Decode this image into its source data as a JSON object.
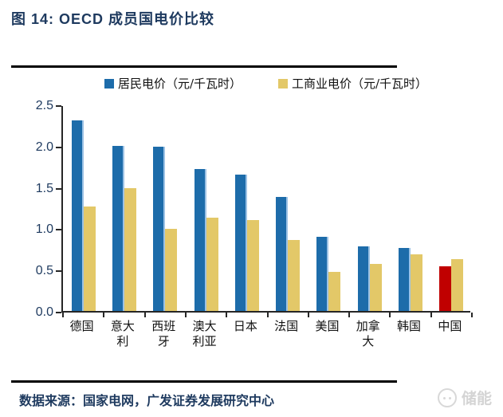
{
  "title": "图 14: OECD 成员国电价比较",
  "footer": {
    "source": "数据来源：国家电网，广发证券发展研究中心",
    "watermark": "储能"
  },
  "colors": {
    "title_navy": "#1e3a5f",
    "axis": "#262626",
    "residential_blue": "#1d6caa",
    "residential_blue_edge": "#9cc2e5",
    "industrial_gold": "#e3c868",
    "china_highlight_red": "#c00000",
    "watermark_gray": "#d4d4d4"
  },
  "chart_data": {
    "type": "bar",
    "title": "图 14: OECD 成员国电价比较",
    "categories": [
      "德国",
      "意大利",
      "西班牙",
      "澳大利亚",
      "日本",
      "法国",
      "美国",
      "加拿大",
      "韩国",
      "中国"
    ],
    "series": [
      {
        "name": "居民电价（元/千瓦时）",
        "color": "#1d6caa",
        "values": [
          2.31,
          2.0,
          1.99,
          1.72,
          1.65,
          1.38,
          0.9,
          0.78,
          0.76,
          0.54
        ]
      },
      {
        "name": "工商业电价（元/千瓦时）",
        "color": "#e3c868",
        "values": [
          1.26,
          1.49,
          0.99,
          1.13,
          1.1,
          0.86,
          0.47,
          0.57,
          0.69,
          0.63
        ]
      }
    ],
    "highlight": {
      "category": "中国",
      "series_index": 0,
      "color": "#c00000"
    },
    "xlabel": "",
    "ylabel": "",
    "ylim": [
      0,
      2.5
    ],
    "yticks": [
      0.0,
      0.5,
      1.0,
      1.5,
      2.0,
      2.5
    ],
    "ytick_labels": [
      "0.0",
      "0.5",
      "1.0",
      "1.5",
      "2.0",
      "2.5"
    ],
    "grid": false,
    "legend_position": "top"
  }
}
